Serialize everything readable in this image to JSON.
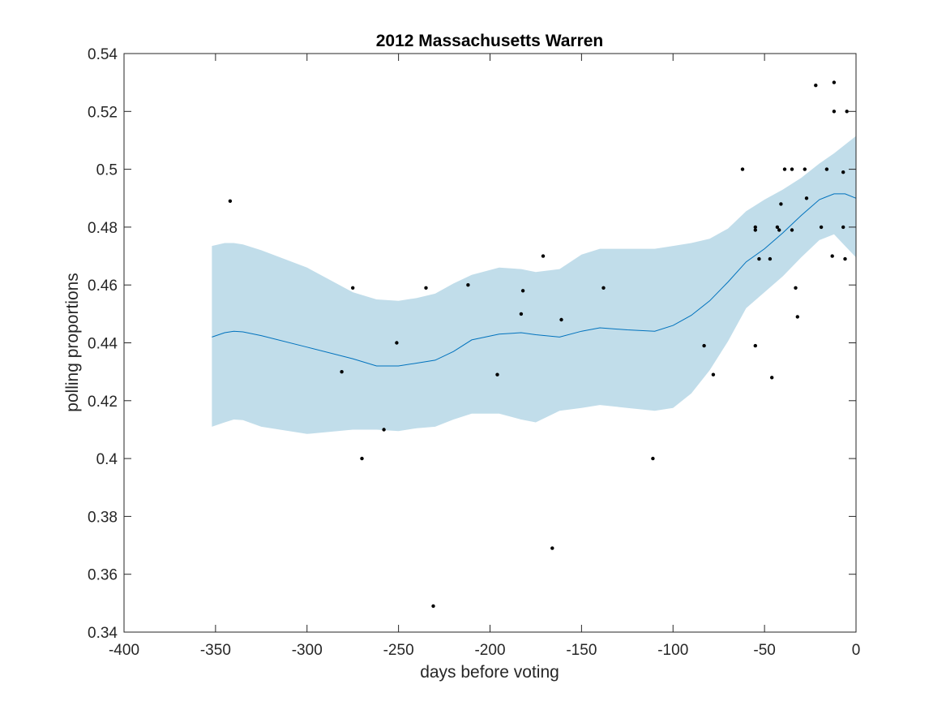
{
  "chart_data": {
    "type": "scatter",
    "title": "2012 Massachusetts Warren",
    "xlabel": "days before voting",
    "ylabel": "polling proportions",
    "xlim": [
      -400,
      0
    ],
    "ylim": [
      0.34,
      0.54
    ],
    "xticks": [
      -400,
      -350,
      -300,
      -250,
      -200,
      -150,
      -100,
      -50,
      0
    ],
    "xtick_labels": [
      "-400",
      "-350",
      "-300",
      "-250",
      "-200",
      "-150",
      "-100",
      "-50",
      "0"
    ],
    "yticks": [
      0.34,
      0.36,
      0.38,
      0.4,
      0.42,
      0.44,
      0.46,
      0.48,
      0.5,
      0.52,
      0.54
    ],
    "ytick_labels": [
      "0.34",
      "0.36",
      "0.38",
      "0.4",
      "0.42",
      "0.44",
      "0.46",
      "0.48",
      "0.5",
      "0.52",
      "0.54"
    ],
    "grid": false,
    "box": true,
    "colors": {
      "band": "#c1ddea",
      "line": "#0072bd",
      "points": "#000000",
      "axes": "#262626"
    },
    "series": [
      {
        "type": "scatter",
        "points": [
          [
            -342,
            0.489
          ],
          [
            -281,
            0.43
          ],
          [
            -275,
            0.459
          ],
          [
            -270,
            0.4
          ],
          [
            -258,
            0.41
          ],
          [
            -251,
            0.44
          ],
          [
            -235,
            0.459
          ],
          [
            -231,
            0.349
          ],
          [
            -212,
            0.46
          ],
          [
            -196,
            0.429
          ],
          [
            -183,
            0.45
          ],
          [
            -182,
            0.458
          ],
          [
            -171,
            0.47
          ],
          [
            -166,
            0.369
          ],
          [
            -161,
            0.448
          ],
          [
            -138,
            0.459
          ],
          [
            -111,
            0.4
          ],
          [
            -83,
            0.439
          ],
          [
            -78,
            0.429
          ],
          [
            -62,
            0.5
          ],
          [
            -55,
            0.48
          ],
          [
            -55,
            0.479
          ],
          [
            -55,
            0.439
          ],
          [
            -53,
            0.469
          ],
          [
            -47,
            0.469
          ],
          [
            -46,
            0.428
          ],
          [
            -43,
            0.48
          ],
          [
            -42,
            0.479
          ],
          [
            -41,
            0.488
          ],
          [
            -39,
            0.5
          ],
          [
            -35,
            0.5
          ],
          [
            -35,
            0.479
          ],
          [
            -33,
            0.459
          ],
          [
            -32,
            0.449
          ],
          [
            -28,
            0.5
          ],
          [
            -27,
            0.49
          ],
          [
            -22,
            0.529
          ],
          [
            -19,
            0.48
          ],
          [
            -16,
            0.5
          ],
          [
            -13,
            0.47
          ],
          [
            -12,
            0.53
          ],
          [
            -12,
            0.52
          ],
          [
            -7,
            0.499
          ],
          [
            -7,
            0.48
          ],
          [
            -6,
            0.469
          ],
          [
            -5,
            0.52
          ]
        ]
      },
      {
        "type": "line",
        "x": [
          -352,
          -345,
          -340,
          -335,
          -325,
          -300,
          -275,
          -262,
          -250,
          -240,
          -230,
          -220,
          -210,
          -195,
          -183,
          -175,
          -162,
          -150,
          -140,
          -125,
          -110,
          -100,
          -90,
          -80,
          -70,
          -60,
          -50,
          -40,
          -30,
          -20,
          -12,
          -6,
          0
        ],
        "y": [
          0.442,
          0.4435,
          0.444,
          0.4438,
          0.4425,
          0.4385,
          0.4345,
          0.432,
          0.432,
          0.433,
          0.434,
          0.437,
          0.441,
          0.443,
          0.4435,
          0.4428,
          0.442,
          0.444,
          0.4452,
          0.4445,
          0.444,
          0.446,
          0.4495,
          0.4545,
          0.461,
          0.468,
          0.4725,
          0.478,
          0.484,
          0.4895,
          0.4915,
          0.4915,
          0.49
        ]
      },
      {
        "type": "band",
        "x": [
          -352,
          -345,
          -340,
          -335,
          -325,
          -300,
          -275,
          -262,
          -250,
          -240,
          -230,
          -220,
          -210,
          -195,
          -183,
          -175,
          -162,
          -150,
          -140,
          -125,
          -110,
          -100,
          -90,
          -80,
          -70,
          -60,
          -50,
          -40,
          -30,
          -20,
          -12,
          -6,
          0
        ],
        "upper": [
          0.4735,
          0.4745,
          0.4745,
          0.474,
          0.472,
          0.466,
          0.4575,
          0.455,
          0.4545,
          0.4555,
          0.457,
          0.4605,
          0.4635,
          0.466,
          0.4655,
          0.4645,
          0.4655,
          0.4705,
          0.4725,
          0.4725,
          0.4725,
          0.4735,
          0.4745,
          0.476,
          0.4795,
          0.4855,
          0.4895,
          0.493,
          0.497,
          0.502,
          0.5055,
          0.5085,
          0.5115
        ],
        "lower": [
          0.411,
          0.4125,
          0.4135,
          0.4133,
          0.411,
          0.4085,
          0.41,
          0.41,
          0.4095,
          0.4105,
          0.411,
          0.4135,
          0.4155,
          0.4155,
          0.4135,
          0.4125,
          0.4165,
          0.4175,
          0.4185,
          0.4175,
          0.4165,
          0.4175,
          0.4225,
          0.4305,
          0.4405,
          0.452,
          0.4575,
          0.463,
          0.4695,
          0.4755,
          0.4775,
          0.4735,
          0.4695
        ]
      }
    ]
  }
}
